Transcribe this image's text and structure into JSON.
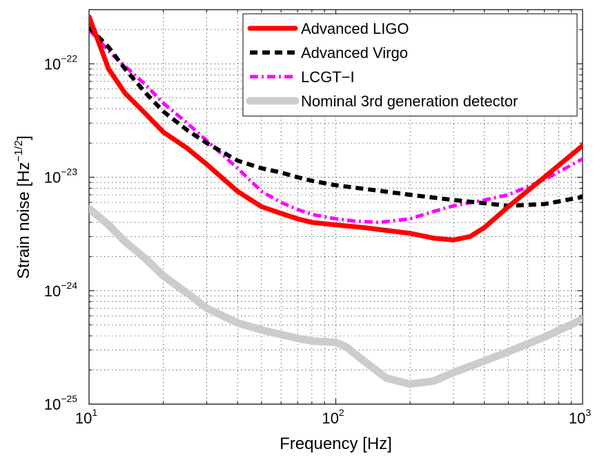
{
  "chart_data": {
    "type": "line",
    "title": "",
    "xlabel": "Frequency [Hz]",
    "ylabel": {
      "main": "Strain noise [Hz",
      "exponent": "−1/2",
      "close": "]"
    },
    "x_scale": "log",
    "y_scale": "log",
    "xlim": [
      10,
      1000
    ],
    "ylim": [
      1e-25,
      3e-22
    ],
    "grid": true,
    "legend_position": "top-right",
    "x_ticks": [
      {
        "value": 10,
        "base": "10",
        "exp": "1"
      },
      {
        "value": 100,
        "base": "10",
        "exp": "2"
      },
      {
        "value": 1000,
        "base": "10",
        "exp": "3"
      }
    ],
    "y_ticks": [
      {
        "value": 1e-25,
        "base": "10",
        "exp": "−25"
      },
      {
        "value": 1e-24,
        "base": "10",
        "exp": "−24"
      },
      {
        "value": 1e-23,
        "base": "10",
        "exp": "−23"
      },
      {
        "value": 1e-22,
        "base": "10",
        "exp": "−22"
      }
    ],
    "series": [
      {
        "name": "Advanced LIGO",
        "color": "#ff0000",
        "style": "solid",
        "x": [
          10,
          11,
          12,
          14,
          17,
          20,
          25,
          30,
          40,
          50,
          60,
          70,
          80,
          100,
          130,
          160,
          200,
          250,
          300,
          350,
          400,
          500,
          700,
          1000
        ],
        "y": [
          2.6e-22,
          1.5e-22,
          9e-23,
          5.5e-23,
          3.6e-23,
          2.5e-23,
          1.8e-23,
          1.3e-23,
          7.5e-24,
          5.5e-24,
          4.8e-24,
          4.3e-24,
          4e-24,
          3.8e-24,
          3.6e-24,
          3.4e-24,
          3.2e-24,
          2.9e-24,
          2.8e-24,
          3e-24,
          3.6e-24,
          5.5e-24,
          1e-23,
          1.9e-23
        ]
      },
      {
        "name": "Advanced Virgo",
        "color": "#000000",
        "style": "dashed",
        "x": [
          10,
          12,
          14,
          17,
          20,
          25,
          30,
          40,
          50,
          60,
          70,
          80,
          100,
          150,
          200,
          300,
          400,
          500,
          700,
          1000
        ],
        "y": [
          2.1e-22,
          1.4e-22,
          9e-23,
          5.5e-23,
          3.8e-23,
          2.6e-23,
          2e-23,
          1.4e-23,
          1.2e-23,
          1.1e-23,
          1e-23,
          9.3e-24,
          8.5e-24,
          7.6e-24,
          7e-24,
          6.3e-24,
          5.9e-24,
          5.6e-24,
          5.8e-24,
          6.7e-24
        ]
      },
      {
        "name": "LCGT−I",
        "color": "#ff00ff",
        "style": "dashdot",
        "x": [
          10,
          12,
          14,
          17,
          20,
          25,
          30,
          40,
          50,
          60,
          70,
          80,
          100,
          120,
          150,
          200,
          250,
          300,
          400,
          500,
          700,
          1000
        ],
        "y": [
          2e-22,
          1.3e-22,
          9.5e-23,
          6.5e-23,
          4.5e-23,
          3e-23,
          2.1e-23,
          1.2e-23,
          7.5e-24,
          6e-24,
          5.2e-24,
          4.7e-24,
          4.3e-24,
          4.1e-24,
          4e-24,
          4.3e-24,
          5e-24,
          5.6e-24,
          6.3e-24,
          7e-24,
          9.5e-24,
          1.45e-23
        ]
      },
      {
        "name": "Nominal 3rd generation detector",
        "color": "#cccccc",
        "style": "solid",
        "x": [
          10,
          12,
          14,
          17,
          20,
          25,
          30,
          40,
          50,
          60,
          70,
          80,
          100,
          110,
          130,
          160,
          200,
          250,
          300,
          400,
          500,
          700,
          1000
        ],
        "y": [
          5.3e-24,
          3.8e-24,
          2.7e-24,
          1.9e-24,
          1.35e-24,
          9.5e-25,
          7e-25,
          5.2e-25,
          4.5e-25,
          4.1e-25,
          3.8e-25,
          3.6e-25,
          3.5e-25,
          3.2e-25,
          2.4e-25,
          1.7e-25,
          1.5e-25,
          1.6e-25,
          1.9e-25,
          2.4e-25,
          2.9e-25,
          3.9e-25,
          5.6e-25
        ]
      }
    ]
  }
}
